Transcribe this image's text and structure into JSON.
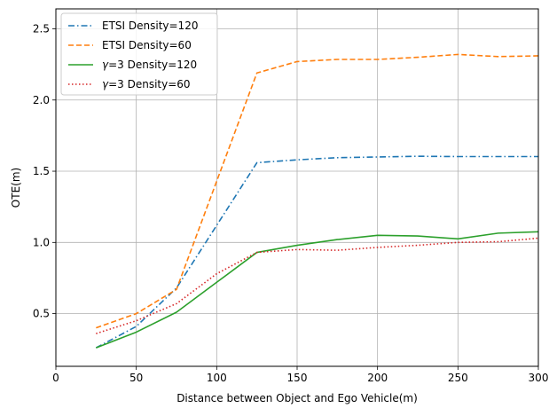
{
  "chart_data": {
    "type": "line",
    "title": "",
    "xlabel": "Distance between Object and Ego Vehicle(m)",
    "ylabel": "OTE(m)",
    "xlim": [
      0,
      300
    ],
    "ylim": [
      0.13,
      2.64
    ],
    "xticks": [
      0,
      50,
      100,
      150,
      200,
      250,
      300
    ],
    "yticks": [
      0.5,
      1.0,
      1.5,
      2.0,
      2.5
    ],
    "xtick_labels": [
      "0",
      "50",
      "100",
      "150",
      "200",
      "250",
      "300"
    ],
    "ytick_labels": [
      "0.5",
      "1.0",
      "1.5",
      "2.0",
      "2.5"
    ],
    "grid": true,
    "legend_position": "top-left",
    "series": [
      {
        "name": "ETSI Density=120",
        "label_parts": [
          "ETSI Density=120"
        ],
        "color": "#1f77b4",
        "dash": "dashdot",
        "x": [
          25,
          50,
          75,
          100,
          125,
          150,
          175,
          200,
          225,
          250,
          275,
          300
        ],
        "values": [
          0.26,
          0.41,
          0.68,
          1.12,
          1.56,
          1.58,
          1.595,
          1.6,
          1.605,
          1.603,
          1.603,
          1.603
        ]
      },
      {
        "name": "ETSI Density=60",
        "label_parts": [
          "ETSI Density=60"
        ],
        "color": "#ff7f0e",
        "dash": "dashed",
        "x": [
          25,
          50,
          75,
          100,
          125,
          150,
          175,
          200,
          225,
          250,
          275,
          300
        ],
        "values": [
          0.4,
          0.5,
          0.67,
          1.43,
          2.19,
          2.27,
          2.285,
          2.285,
          2.3,
          2.32,
          2.305,
          2.31
        ]
      },
      {
        "name": "γ=3 Density=120",
        "label_parts": [
          "γ",
          "=3 Density=120"
        ],
        "color": "#2ca02c",
        "dash": "solid",
        "x": [
          25,
          50,
          75,
          100,
          125,
          150,
          175,
          200,
          225,
          250,
          275,
          300
        ],
        "values": [
          0.26,
          0.37,
          0.51,
          0.72,
          0.93,
          0.98,
          1.02,
          1.05,
          1.045,
          1.025,
          1.065,
          1.075
        ]
      },
      {
        "name": "γ=3 Density=60",
        "label_parts": [
          "γ",
          "=3 Density=60"
        ],
        "color": "#d62728",
        "dash": "dotted",
        "x": [
          25,
          50,
          75,
          100,
          125,
          150,
          175,
          200,
          225,
          250,
          275,
          300
        ],
        "values": [
          0.36,
          0.45,
          0.57,
          0.78,
          0.93,
          0.95,
          0.945,
          0.965,
          0.98,
          1.0,
          1.005,
          1.03
        ]
      }
    ]
  }
}
